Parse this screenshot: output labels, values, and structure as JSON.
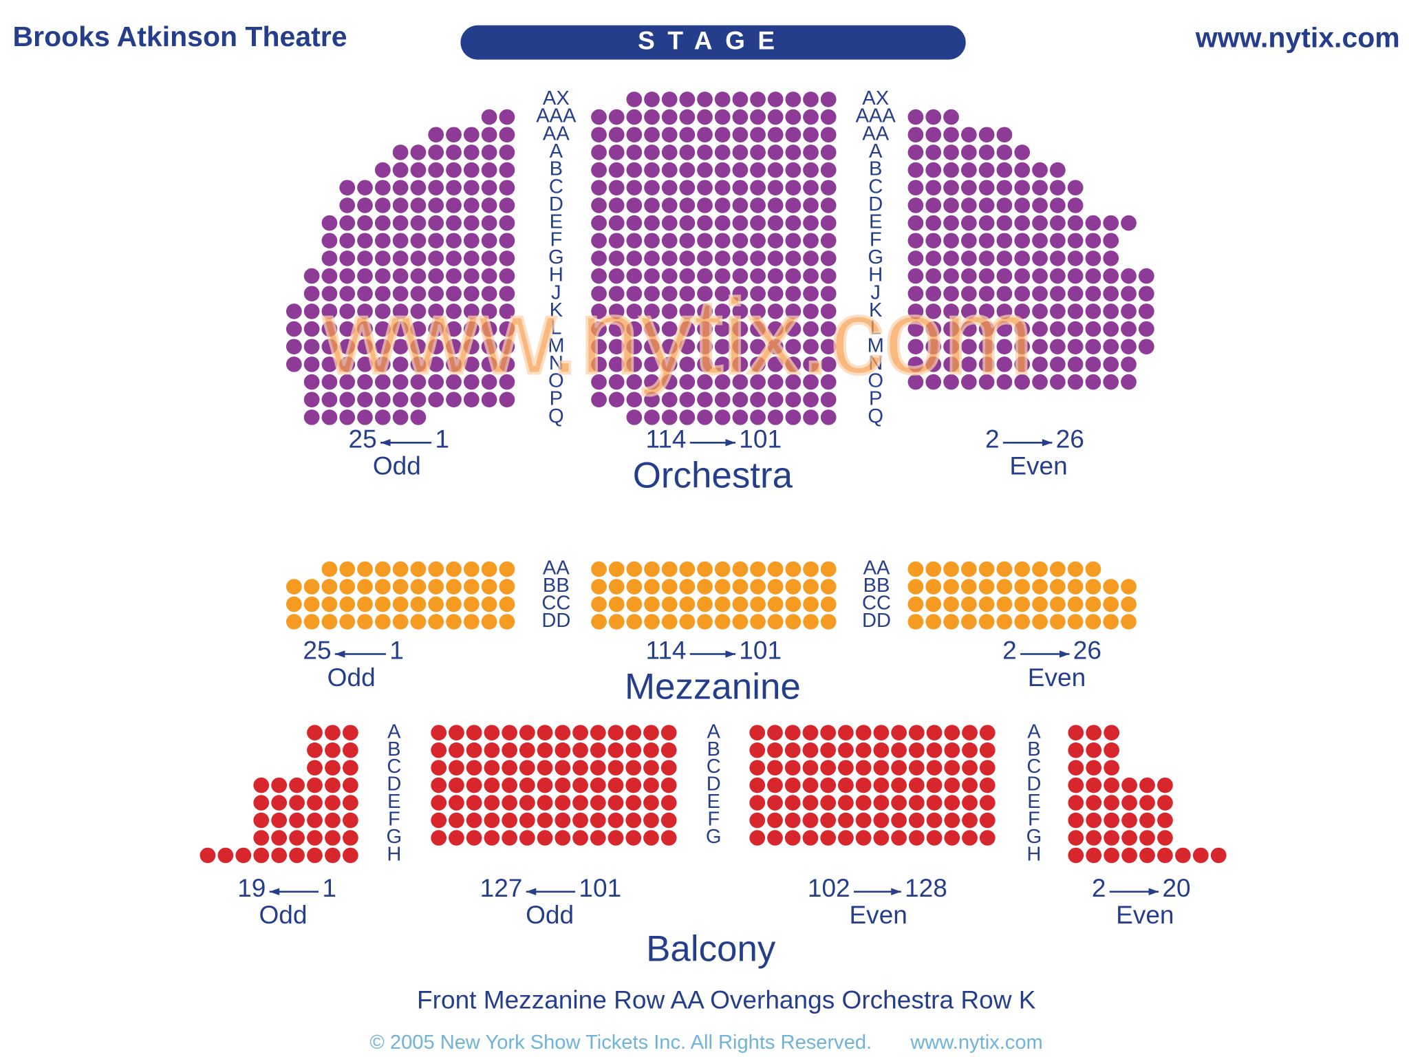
{
  "header": {
    "title": "Brooks Atkinson Theatre",
    "stage": "STAGE",
    "website": "www.nytix.com"
  },
  "watermark": "www.nytix.com",
  "orchestra": {
    "name": "Orchestra",
    "aisle_rows": [
      "AX",
      "AAA",
      "AA",
      "A",
      "B",
      "C",
      "D",
      "E",
      "F",
      "G",
      "H",
      "J",
      "K",
      "L",
      "M",
      "N",
      "O",
      "P",
      "Q"
    ],
    "ranges": [
      {
        "left": "25",
        "right": "1",
        "parity": "Odd"
      },
      {
        "left": "114",
        "right": "101"
      },
      {
        "left": "2",
        "right": "26",
        "parity": "Even"
      }
    ]
  },
  "mezzanine": {
    "name": "Mezzanine",
    "aisle_rows": [
      "AA",
      "BB",
      "CC",
      "DD"
    ],
    "ranges": [
      {
        "left": "25",
        "right": "1",
        "parity": "Odd"
      },
      {
        "left": "114",
        "right": "101"
      },
      {
        "left": "2",
        "right": "26",
        "parity": "Even"
      }
    ]
  },
  "balcony": {
    "name": "Balcony",
    "aisle_rows_side": [
      "A",
      "B",
      "C",
      "D",
      "E",
      "F",
      "G",
      "H"
    ],
    "aisle_rows_middle": [
      "A",
      "B",
      "C",
      "D",
      "E",
      "F",
      "G"
    ],
    "ranges": [
      {
        "left": "19",
        "right": "1",
        "parity": "Odd"
      },
      {
        "left": "127",
        "right": "101",
        "parity": "Odd"
      },
      {
        "left": "102",
        "right": "128",
        "parity": "Even"
      },
      {
        "left": "2",
        "right": "20",
        "parity": "Even"
      }
    ]
  },
  "footnote": "Front Mezzanine Row AA Overhangs Orchestra Row K",
  "copyright": {
    "notice": "© 2005 New York Show Tickets Inc. All Rights Reserved.",
    "website": "www.nytix.com"
  }
}
